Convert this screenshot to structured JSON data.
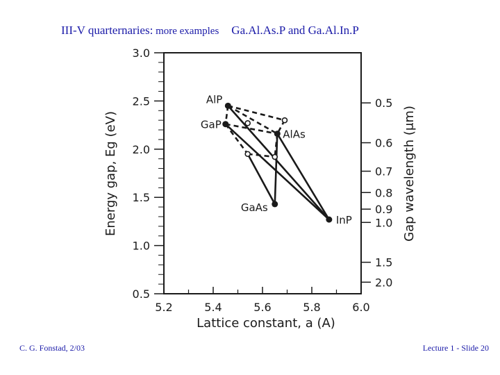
{
  "slide": {
    "title_main": "III-V quarternaries:",
    "title_sub": " more examples",
    "title_right": "Ga.Al.As.P and Ga.Al.In.P",
    "footer_left": "C. G. Fonstad, 2/03",
    "footer_right": "Lecture 1 - Slide 20"
  },
  "chart_data": {
    "type": "scatter",
    "xlabel": "Lattice constant, a (A)",
    "ylabel": "Energy gap, Eg (eV)",
    "y2label": "Gap wavelength (μm)",
    "xlim": [
      5.2,
      6.0
    ],
    "ylim": [
      0.5,
      3.0
    ],
    "x_ticks": [
      "5.2",
      "5.4",
      "5.6",
      "5.8",
      "6.0"
    ],
    "y_ticks": [
      "0.5",
      "1.0",
      "1.5",
      "2.0",
      "2.5",
      "3.0"
    ],
    "y2_ticks": [
      "0.5",
      "0.6",
      "0.7",
      "0.8",
      "0.9",
      "1.0",
      "1.5",
      "2.0"
    ],
    "points": [
      {
        "label": "AlP",
        "x": 5.46,
        "y": 2.45
      },
      {
        "label": "GaP",
        "x": 5.45,
        "y": 2.26
      },
      {
        "label": "AlAs",
        "x": 5.66,
        "y": 2.16
      },
      {
        "label": "GaAs",
        "x": 5.65,
        "y": 1.43
      },
      {
        "label": "InP",
        "x": 5.87,
        "y": 1.27
      }
    ],
    "intermediate_points": [
      {
        "x": 5.69,
        "y": 2.3
      },
      {
        "x": 5.54,
        "y": 2.27
      },
      {
        "x": 5.54,
        "y": 1.95
      },
      {
        "x": 5.65,
        "y": 1.92
      }
    ],
    "solid_lines": [
      [
        [
          5.46,
          2.45
        ],
        [
          5.87,
          1.27
        ]
      ],
      [
        [
          5.45,
          2.26
        ],
        [
          5.87,
          1.27
        ]
      ],
      [
        [
          5.66,
          2.16
        ],
        [
          5.65,
          1.43
        ]
      ],
      [
        [
          5.66,
          2.16
        ],
        [
          5.87,
          1.27
        ]
      ],
      [
        [
          5.54,
          1.95
        ],
        [
          5.65,
          1.43
        ]
      ]
    ],
    "dashed_lines": [
      [
        [
          5.46,
          2.45
        ],
        [
          5.69,
          2.3
        ]
      ],
      [
        [
          5.46,
          2.45
        ],
        [
          5.66,
          2.16
        ]
      ],
      [
        [
          5.45,
          2.26
        ],
        [
          5.66,
          2.16
        ]
      ],
      [
        [
          5.69,
          2.3
        ],
        [
          5.66,
          2.16
        ]
      ],
      [
        [
          5.46,
          2.45
        ],
        [
          5.45,
          2.26
        ]
      ],
      [
        [
          5.66,
          2.16
        ],
        [
          5.65,
          1.92
        ]
      ],
      [
        [
          5.45,
          2.26
        ],
        [
          5.54,
          1.95
        ]
      ],
      [
        [
          5.54,
          1.95
        ],
        [
          5.65,
          1.92
        ]
      ]
    ]
  }
}
